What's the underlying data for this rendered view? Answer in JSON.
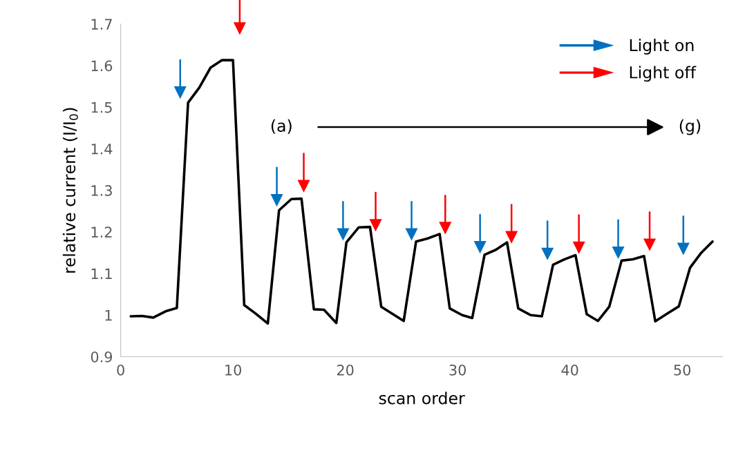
{
  "chart_data": {
    "type": "line",
    "xlabel": "scan order",
    "ylabel": "relative current (I/I$_{0}$)",
    "xlim": [
      0,
      53.6
    ],
    "ylim": [
      0.9,
      1.7
    ],
    "xticks": [
      0,
      10,
      20,
      30,
      40,
      50
    ],
    "yticks": [
      0.9,
      {
        "value": 1,
        "label": "1"
      },
      1.1,
      1.2,
      1.3,
      1.4,
      1.5,
      1.6,
      1.7
    ],
    "grid": false,
    "legend": "top right",
    "line_style": "solid",
    "annotations": [
      "(a)",
      "(g)"
    ],
    "series": [
      {
        "type": "line",
        "color": "#000000",
        "x": [
          0.9,
          1.9,
          2.9,
          4.0,
          5.0,
          6.0,
          7.0,
          8.0,
          9.0,
          10.0,
          11.0,
          12.0,
          13.1,
          14.1,
          15.2,
          16.1,
          17.2,
          18.1,
          19.2,
          20.1,
          21.2,
          22.2,
          23.2,
          24.2,
          25.2,
          26.3,
          27.3,
          28.4,
          29.3,
          30.4,
          31.3,
          32.4,
          33.4,
          34.4,
          35.4,
          36.5,
          37.5,
          38.5,
          39.5,
          40.5,
          41.5,
          42.5,
          43.5,
          44.6,
          45.6,
          46.6,
          47.6,
          48.7,
          49.7,
          50.7,
          51.7,
          52.7
        ],
        "values": [
          0.997,
          0.998,
          0.994,
          1.009,
          1.017,
          1.511,
          1.547,
          1.595,
          1.613,
          1.613,
          1.024,
          1.004,
          0.98,
          1.252,
          1.279,
          1.28,
          1.014,
          1.013,
          0.981,
          1.175,
          1.211,
          1.212,
          1.02,
          1.003,
          0.986,
          1.177,
          1.184,
          1.195,
          1.016,
          1.0,
          0.993,
          1.145,
          1.157,
          1.175,
          1.016,
          1.0,
          0.997,
          1.121,
          1.134,
          1.144,
          1.002,
          0.986,
          1.02,
          1.131,
          1.134,
          1.142,
          0.985,
          1.004,
          1.021,
          1.114,
          1.15,
          1.177
        ]
      },
      {
        "type": "scatter",
        "name": "Light on",
        "color": "#0070c0",
        "x": [
          5.3,
          13.9,
          19.8,
          25.9,
          32.0,
          38.0,
          44.3,
          50.1
        ],
        "values": [
          1.535,
          1.276,
          1.194,
          1.194,
          1.163,
          1.147,
          1.15,
          1.159
        ]
      },
      {
        "type": "scatter",
        "name": "Light off",
        "color": "#ff0000",
        "x": [
          10.6,
          16.3,
          22.7,
          28.9,
          34.8,
          40.8,
          47.1
        ],
        "values": [
          1.689,
          1.31,
          1.216,
          1.209,
          1.187,
          1.162,
          1.169
        ]
      }
    ]
  }
}
